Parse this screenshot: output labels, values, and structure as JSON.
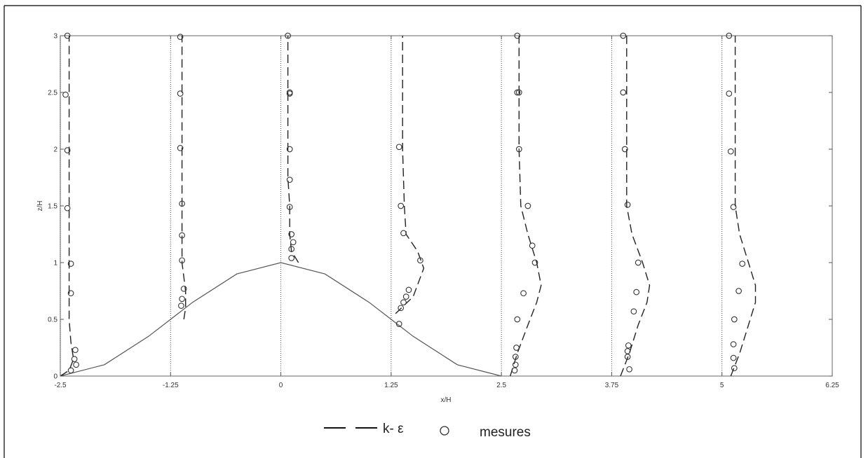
{
  "chart_data": {
    "type": "line",
    "title": "",
    "xlabel": "x/H",
    "ylabel": "z/H",
    "xlim": [
      -2.5,
      6.25
    ],
    "ylim": [
      0,
      3
    ],
    "x_ticks": [
      "-2.5",
      "-1.25",
      "0",
      "1.25",
      "2.5",
      "3.75",
      "5",
      "6.25"
    ],
    "y_ticks": [
      "0",
      "0.5",
      "1",
      "1.5",
      "2",
      "2.5",
      "3"
    ],
    "grid": false,
    "hill": {
      "x": [
        -2.5,
        -2.0,
        -1.5,
        -1.25,
        -1.0,
        -0.5,
        0,
        0.5,
        1.0,
        1.25,
        1.5,
        2.0,
        2.5
      ],
      "z": [
        0,
        0.1,
        0.35,
        0.5,
        0.65,
        0.9,
        1.0,
        0.9,
        0.65,
        0.5,
        0.35,
        0.1,
        0
      ]
    },
    "profiles": [
      {
        "station": -2.5,
        "model_x": [
          -2.5,
          -2.4,
          -2.35,
          -2.38,
          -2.4,
          -2.4,
          -2.4,
          -2.4,
          -2.4,
          -2.4,
          -2.4
        ],
        "model_z": [
          0.0,
          0.05,
          0.15,
          0.3,
          0.5,
          1.0,
          1.5,
          2.0,
          2.5,
          2.8,
          3.0
        ],
        "measured_x": [
          -2.38,
          -2.32,
          -2.34,
          -2.33,
          -2.38,
          -2.38,
          -2.42,
          -2.42,
          -2.44,
          -2.42
        ],
        "measured_z": [
          0.05,
          0.1,
          0.15,
          0.23,
          0.73,
          0.99,
          1.48,
          1.99,
          2.48,
          3.0
        ]
      },
      {
        "station": -1.25,
        "model_x": [
          -1.1,
          -1.08,
          -1.08,
          -1.12,
          -1.12,
          -1.12,
          -1.12,
          -1.12,
          -1.12,
          -1.12
        ],
        "model_z": [
          0.5,
          0.6,
          0.75,
          1.0,
          1.25,
          1.5,
          2.0,
          2.5,
          2.8,
          3.0
        ],
        "measured_x": [
          -1.13,
          -1.12,
          -1.1,
          -1.12,
          -1.12,
          -1.12,
          -1.14,
          -1.14,
          -1.14
        ],
        "measured_z": [
          0.62,
          0.68,
          0.77,
          1.02,
          1.24,
          1.52,
          2.01,
          2.49,
          2.99
        ]
      },
      {
        "station": 0,
        "model_x": [
          0.2,
          0.12,
          0.1,
          0.1,
          0.08,
          0.08,
          0.08,
          0.08,
          0.08,
          0.08
        ],
        "model_z": [
          1.0,
          1.1,
          1.25,
          1.5,
          1.75,
          2.0,
          2.25,
          2.5,
          2.8,
          3.0
        ],
        "measured_x": [
          0.12,
          0.12,
          0.14,
          0.12,
          0.1,
          0.1,
          0.1,
          0.1,
          0.1,
          0.08
        ],
        "measured_z": [
          1.04,
          1.12,
          1.18,
          1.25,
          1.49,
          1.73,
          2.0,
          2.49,
          2.5,
          3.0
        ]
      },
      {
        "station": 1.25,
        "model_x": [
          1.3,
          1.5,
          1.62,
          1.55,
          1.42,
          1.4,
          1.38,
          1.38,
          1.38,
          1.38
        ],
        "model_z": [
          0.55,
          0.7,
          0.95,
          1.1,
          1.25,
          1.5,
          2.0,
          2.5,
          2.8,
          3.0
        ],
        "measured_x": [
          1.34,
          1.36,
          1.39,
          1.42,
          1.45,
          1.58,
          1.39,
          1.36,
          1.34
        ],
        "measured_z": [
          0.46,
          0.6,
          0.65,
          0.7,
          0.76,
          1.02,
          1.26,
          1.5,
          2.02
        ]
      },
      {
        "station": 2.5,
        "model_x": [
          2.6,
          2.68,
          2.8,
          2.9,
          2.95,
          2.9,
          2.8,
          2.72,
          2.7,
          2.7,
          2.7
        ],
        "model_z": [
          0.0,
          0.2,
          0.45,
          0.65,
          0.8,
          1.0,
          1.25,
          1.5,
          2.0,
          2.5,
          3.0
        ],
        "measured_x": [
          2.65,
          2.66,
          2.66,
          2.67,
          2.68,
          2.75,
          2.88,
          2.85,
          2.8,
          2.7,
          2.7,
          2.68,
          2.68
        ],
        "measured_z": [
          0.05,
          0.1,
          0.17,
          0.25,
          0.5,
          0.73,
          1.0,
          1.15,
          1.5,
          2.0,
          2.5,
          2.5,
          3.0
        ]
      },
      {
        "station": 3.75,
        "model_x": [
          3.85,
          3.95,
          4.05,
          4.15,
          4.18,
          4.1,
          3.98,
          3.92,
          3.92,
          3.92,
          3.92
        ],
        "model_z": [
          0.0,
          0.2,
          0.45,
          0.65,
          0.8,
          1.0,
          1.25,
          1.5,
          2.0,
          2.5,
          3.0
        ],
        "measured_x": [
          3.95,
          3.93,
          3.93,
          3.94,
          4.0,
          4.03,
          4.05,
          3.93,
          3.9,
          3.88,
          3.88
        ],
        "measured_z": [
          0.06,
          0.17,
          0.22,
          0.27,
          0.57,
          0.74,
          1.0,
          1.51,
          2.0,
          2.5,
          3.0
        ]
      },
      {
        "station": 5,
        "model_x": [
          5.1,
          5.2,
          5.3,
          5.38,
          5.38,
          5.3,
          5.2,
          5.15,
          5.15,
          5.15,
          5.15
        ],
        "model_z": [
          0.0,
          0.2,
          0.45,
          0.65,
          0.8,
          1.0,
          1.25,
          1.5,
          2.0,
          2.5,
          3.0
        ],
        "measured_x": [
          5.14,
          5.13,
          5.13,
          5.14,
          5.19,
          5.23,
          5.13,
          5.1,
          5.08,
          5.08
        ],
        "measured_z": [
          0.07,
          0.16,
          0.28,
          0.5,
          0.75,
          0.99,
          1.49,
          1.98,
          2.49,
          3.0
        ]
      }
    ],
    "legend": [
      {
        "label": "k- ε",
        "style": "dashed"
      },
      {
        "label": "mesures",
        "style": "circle"
      }
    ]
  }
}
